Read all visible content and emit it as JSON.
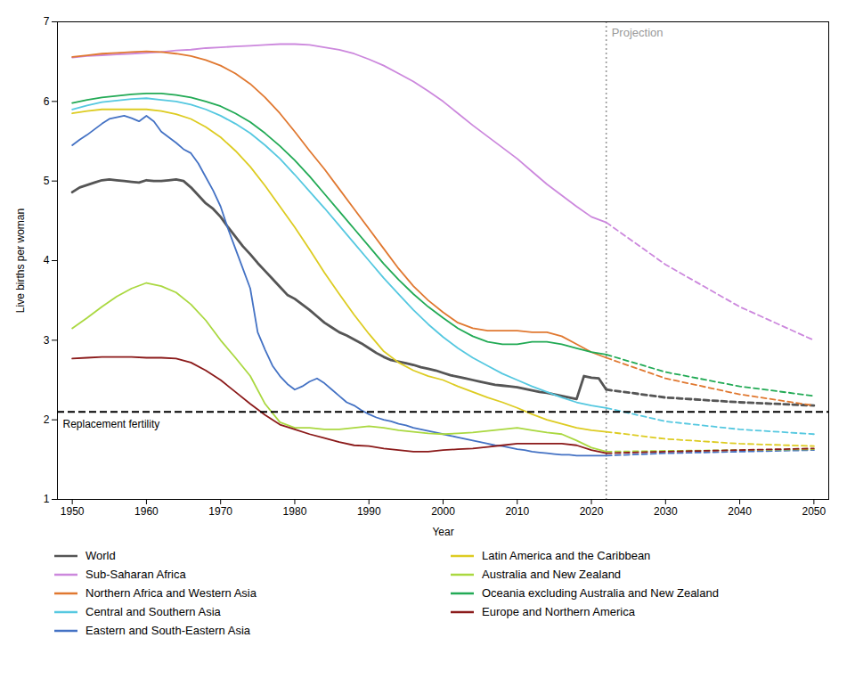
{
  "chart_data": {
    "type": "line",
    "xlabel": "Year",
    "ylabel": "Live births per woman",
    "xlim": [
      1948,
      2052
    ],
    "ylim": [
      1,
      7
    ],
    "xticks": [
      1950,
      1960,
      1970,
      1980,
      1990,
      2000,
      2010,
      2020,
      2030,
      2040,
      2050
    ],
    "yticks": [
      1,
      2,
      3,
      4,
      5,
      6,
      7
    ],
    "grid": false,
    "legend": "bottom",
    "annotations": [
      {
        "type": "hline",
        "y": 2.1,
        "text": "Replacement fertility",
        "color": "black",
        "line_style": "dashed"
      },
      {
        "type": "vline",
        "x": 2022,
        "text": "Projection",
        "color": "#999999",
        "line_style": "dotted"
      }
    ],
    "series": [
      {
        "name": "World",
        "color": "#555555",
        "line_style": "solid",
        "x": [
          1950,
          1951,
          1952,
          1953,
          1954,
          1955,
          1956,
          1957,
          1958,
          1959,
          1960,
          1961,
          1962,
          1963,
          1964,
          1965,
          1966,
          1967,
          1968,
          1969,
          1970,
          1971,
          1972,
          1973,
          1974,
          1975,
          1976,
          1977,
          1978,
          1979,
          1980,
          1981,
          1982,
          1983,
          1984,
          1985,
          1986,
          1987,
          1988,
          1989,
          1990,
          1991,
          1992,
          1993,
          1994,
          1995,
          1996,
          1997,
          1998,
          1999,
          2000,
          2001,
          2002,
          2003,
          2004,
          2005,
          2006,
          2007,
          2008,
          2009,
          2010,
          2011,
          2012,
          2013,
          2014,
          2015,
          2016,
          2017,
          2018,
          2019,
          2020,
          2021,
          2022
        ],
        "values": [
          4.86,
          4.92,
          4.95,
          4.98,
          5.01,
          5.02,
          5.01,
          5.0,
          4.99,
          4.98,
          5.01,
          5.0,
          5.0,
          5.01,
          5.02,
          5.0,
          4.92,
          4.82,
          4.72,
          4.65,
          4.55,
          4.42,
          4.3,
          4.18,
          4.08,
          3.97,
          3.87,
          3.77,
          3.67,
          3.57,
          3.52,
          3.45,
          3.38,
          3.3,
          3.22,
          3.16,
          3.1,
          3.06,
          3.01,
          2.96,
          2.9,
          2.84,
          2.79,
          2.75,
          2.73,
          2.71,
          2.69,
          2.66,
          2.64,
          2.62,
          2.59,
          2.56,
          2.54,
          2.52,
          2.5,
          2.48,
          2.46,
          2.44,
          2.43,
          2.42,
          2.41,
          2.39,
          2.37,
          2.35,
          2.34,
          2.32,
          2.3,
          2.28,
          2.26,
          2.55,
          2.53,
          2.52,
          2.38
        ],
        "projection": {
          "x": [
            2022,
            2030,
            2040,
            2050
          ],
          "values": [
            2.38,
            2.28,
            2.22,
            2.18
          ],
          "line_style": "dashed"
        }
      },
      {
        "name": "Sub-Saharan Africa",
        "color": "#cc88dd",
        "line_style": "solid",
        "x": [
          1950,
          1952,
          1954,
          1956,
          1958,
          1960,
          1962,
          1964,
          1966,
          1968,
          1970,
          1972,
          1974,
          1976,
          1978,
          1980,
          1982,
          1984,
          1986,
          1988,
          1990,
          1992,
          1994,
          1996,
          1998,
          2000,
          2002,
          2004,
          2006,
          2008,
          2010,
          2012,
          2014,
          2016,
          2018,
          2020,
          2022
        ],
        "values": [
          6.55,
          6.57,
          6.58,
          6.59,
          6.6,
          6.61,
          6.62,
          6.64,
          6.65,
          6.67,
          6.68,
          6.69,
          6.7,
          6.71,
          6.72,
          6.72,
          6.71,
          6.68,
          6.65,
          6.6,
          6.53,
          6.45,
          6.35,
          6.25,
          6.13,
          6.0,
          5.85,
          5.7,
          5.56,
          5.42,
          5.28,
          5.12,
          4.96,
          4.82,
          4.68,
          4.55,
          4.48
        ],
        "projection": {
          "x": [
            2022,
            2030,
            2040,
            2050
          ],
          "values": [
            4.48,
            3.95,
            3.42,
            3.0
          ],
          "line_style": "dashed"
        }
      },
      {
        "name": "Northern Africa and Western Asia",
        "color": "#e07830",
        "line_style": "solid",
        "x": [
          1950,
          1952,
          1954,
          1956,
          1958,
          1960,
          1962,
          1964,
          1966,
          1968,
          1970,
          1972,
          1974,
          1976,
          1978,
          1980,
          1982,
          1984,
          1986,
          1988,
          1990,
          1992,
          1994,
          1996,
          1998,
          2000,
          2002,
          2004,
          2006,
          2008,
          2010,
          2012,
          2014,
          2016,
          2018,
          2020,
          2022
        ],
        "values": [
          6.56,
          6.58,
          6.6,
          6.61,
          6.62,
          6.63,
          6.62,
          6.6,
          6.57,
          6.52,
          6.45,
          6.35,
          6.22,
          6.05,
          5.85,
          5.62,
          5.38,
          5.15,
          4.9,
          4.65,
          4.4,
          4.15,
          3.9,
          3.68,
          3.5,
          3.35,
          3.22,
          3.15,
          3.12,
          3.12,
          3.12,
          3.1,
          3.1,
          3.05,
          2.95,
          2.85,
          2.78
        ],
        "projection": {
          "x": [
            2022,
            2030,
            2040,
            2050
          ],
          "values": [
            2.78,
            2.52,
            2.32,
            2.18
          ],
          "line_style": "dashed"
        }
      },
      {
        "name": "Central and Southern Asia",
        "color": "#55c8e0",
        "line_style": "solid",
        "x": [
          1950,
          1952,
          1954,
          1956,
          1958,
          1960,
          1962,
          1964,
          1966,
          1968,
          1970,
          1972,
          1974,
          1976,
          1978,
          1980,
          1982,
          1984,
          1986,
          1988,
          1990,
          1992,
          1994,
          1996,
          1998,
          2000,
          2002,
          2004,
          2006,
          2008,
          2010,
          2012,
          2014,
          2016,
          2018,
          2020,
          2022
        ],
        "values": [
          5.9,
          5.95,
          5.99,
          6.01,
          6.03,
          6.04,
          6.02,
          6.0,
          5.96,
          5.9,
          5.82,
          5.72,
          5.6,
          5.45,
          5.28,
          5.08,
          4.87,
          4.66,
          4.44,
          4.22,
          4.0,
          3.78,
          3.58,
          3.38,
          3.2,
          3.04,
          2.9,
          2.78,
          2.68,
          2.58,
          2.5,
          2.42,
          2.35,
          2.28,
          2.22,
          2.18,
          2.15
        ],
        "projection": {
          "x": [
            2022,
            2030,
            2040,
            2050
          ],
          "values": [
            2.15,
            1.98,
            1.88,
            1.82
          ],
          "line_style": "dashed"
        }
      },
      {
        "name": "Eastern and South-Eastern Asia",
        "color": "#4472c4",
        "line_style": "solid",
        "x": [
          1950,
          1951,
          1952,
          1953,
          1954,
          1955,
          1956,
          1957,
          1958,
          1959,
          1960,
          1961,
          1962,
          1963,
          1964,
          1965,
          1966,
          1967,
          1968,
          1969,
          1970,
          1971,
          1972,
          1973,
          1974,
          1975,
          1976,
          1977,
          1978,
          1979,
          1980,
          1981,
          1982,
          1983,
          1984,
          1985,
          1986,
          1987,
          1988,
          1989,
          1990,
          1991,
          1992,
          1993,
          1994,
          1995,
          1996,
          1997,
          1998,
          1999,
          2000,
          2001,
          2002,
          2003,
          2004,
          2005,
          2006,
          2007,
          2008,
          2009,
          2010,
          2011,
          2012,
          2013,
          2014,
          2015,
          2016,
          2017,
          2018,
          2019,
          2020,
          2021,
          2022
        ],
        "values": [
          5.45,
          5.52,
          5.58,
          5.65,
          5.72,
          5.78,
          5.8,
          5.82,
          5.79,
          5.75,
          5.82,
          5.75,
          5.62,
          5.55,
          5.48,
          5.4,
          5.35,
          5.22,
          5.05,
          4.88,
          4.68,
          4.4,
          4.15,
          3.9,
          3.65,
          3.1,
          2.88,
          2.68,
          2.55,
          2.45,
          2.38,
          2.42,
          2.48,
          2.52,
          2.46,
          2.38,
          2.3,
          2.22,
          2.18,
          2.12,
          2.07,
          2.03,
          2.0,
          1.98,
          1.95,
          1.93,
          1.9,
          1.88,
          1.86,
          1.84,
          1.82,
          1.8,
          1.78,
          1.76,
          1.74,
          1.72,
          1.7,
          1.68,
          1.67,
          1.65,
          1.63,
          1.62,
          1.6,
          1.59,
          1.58,
          1.57,
          1.56,
          1.56,
          1.55,
          1.55,
          1.55,
          1.55,
          1.55
        ],
        "projection": {
          "x": [
            2022,
            2030,
            2040,
            2050
          ],
          "values": [
            1.55,
            1.58,
            1.6,
            1.62
          ],
          "line_style": "dashed"
        }
      },
      {
        "name": "Latin America and the Caribbean",
        "color": "#ddcc22",
        "line_style": "solid",
        "x": [
          1950,
          1952,
          1954,
          1956,
          1958,
          1960,
          1962,
          1964,
          1966,
          1968,
          1970,
          1972,
          1974,
          1976,
          1978,
          1980,
          1982,
          1984,
          1986,
          1988,
          1990,
          1992,
          1994,
          1996,
          1998,
          2000,
          2002,
          2004,
          2006,
          2008,
          2010,
          2012,
          2014,
          2016,
          2018,
          2020,
          2022
        ],
        "values": [
          5.85,
          5.88,
          5.9,
          5.9,
          5.9,
          5.9,
          5.88,
          5.84,
          5.78,
          5.68,
          5.55,
          5.38,
          5.18,
          4.94,
          4.68,
          4.42,
          4.14,
          3.85,
          3.58,
          3.32,
          3.08,
          2.86,
          2.72,
          2.62,
          2.55,
          2.5,
          2.42,
          2.35,
          2.28,
          2.22,
          2.15,
          2.07,
          2.0,
          1.95,
          1.9,
          1.87,
          1.85
        ],
        "projection": {
          "x": [
            2022,
            2030,
            2040,
            2050
          ],
          "values": [
            1.85,
            1.76,
            1.7,
            1.67
          ],
          "line_style": "dashed"
        }
      },
      {
        "name": "Australia and New Zealand",
        "color": "#aad840",
        "line_style": "solid",
        "x": [
          1950,
          1952,
          1954,
          1956,
          1958,
          1960,
          1962,
          1964,
          1966,
          1968,
          1970,
          1972,
          1974,
          1976,
          1978,
          1980,
          1982,
          1984,
          1986,
          1988,
          1990,
          1992,
          1994,
          1996,
          1998,
          2000,
          2002,
          2004,
          2006,
          2008,
          2010,
          2012,
          2014,
          2016,
          2018,
          2020,
          2022
        ],
        "values": [
          3.15,
          3.28,
          3.42,
          3.55,
          3.65,
          3.72,
          3.68,
          3.6,
          3.45,
          3.25,
          3.0,
          2.78,
          2.55,
          2.2,
          1.97,
          1.9,
          1.9,
          1.88,
          1.88,
          1.9,
          1.92,
          1.9,
          1.87,
          1.85,
          1.83,
          1.82,
          1.83,
          1.84,
          1.86,
          1.88,
          1.9,
          1.87,
          1.84,
          1.82,
          1.74,
          1.65,
          1.6
        ],
        "projection": {
          "x": [
            2022,
            2030,
            2040,
            2050
          ],
          "values": [
            1.6,
            1.61,
            1.62,
            1.63
          ],
          "line_style": "dashed"
        }
      },
      {
        "name": "Oceania excluding Australia and New Zealand",
        "color": "#22aa55",
        "line_style": "solid",
        "x": [
          1950,
          1952,
          1954,
          1956,
          1958,
          1960,
          1962,
          1964,
          1966,
          1968,
          1970,
          1972,
          1974,
          1976,
          1978,
          1980,
          1982,
          1984,
          1986,
          1988,
          1990,
          1992,
          1994,
          1996,
          1998,
          2000,
          2002,
          2004,
          2006,
          2008,
          2010,
          2012,
          2014,
          2016,
          2018,
          2020,
          2022
        ],
        "values": [
          5.98,
          6.02,
          6.05,
          6.07,
          6.09,
          6.1,
          6.1,
          6.08,
          6.05,
          6.0,
          5.94,
          5.85,
          5.74,
          5.6,
          5.44,
          5.26,
          5.06,
          4.84,
          4.62,
          4.4,
          4.18,
          3.96,
          3.76,
          3.58,
          3.42,
          3.28,
          3.15,
          3.05,
          2.98,
          2.95,
          2.95,
          2.98,
          2.98,
          2.95,
          2.9,
          2.85,
          2.82
        ],
        "projection": {
          "x": [
            2022,
            2030,
            2040,
            2050
          ],
          "values": [
            2.82,
            2.6,
            2.42,
            2.3
          ],
          "line_style": "dashed"
        }
      },
      {
        "name": "Europe and Northern America",
        "color": "#8b1a1a",
        "line_style": "solid",
        "x": [
          1950,
          1952,
          1954,
          1956,
          1958,
          1960,
          1962,
          1964,
          1966,
          1968,
          1970,
          1972,
          1974,
          1976,
          1978,
          1980,
          1982,
          1984,
          1986,
          1988,
          1990,
          1992,
          1994,
          1996,
          1998,
          2000,
          2002,
          2004,
          2006,
          2008,
          2010,
          2012,
          2014,
          2016,
          2018,
          2020,
          2022
        ],
        "values": [
          2.77,
          2.78,
          2.79,
          2.79,
          2.79,
          2.78,
          2.78,
          2.77,
          2.72,
          2.62,
          2.5,
          2.35,
          2.2,
          2.06,
          1.94,
          1.88,
          1.82,
          1.77,
          1.72,
          1.68,
          1.67,
          1.64,
          1.62,
          1.6,
          1.6,
          1.62,
          1.63,
          1.64,
          1.66,
          1.68,
          1.7,
          1.7,
          1.7,
          1.7,
          1.68,
          1.62,
          1.58
        ],
        "projection": {
          "x": [
            2022,
            2030,
            2040,
            2050
          ],
          "values": [
            1.58,
            1.6,
            1.62,
            1.64
          ],
          "line_style": "dashed"
        }
      }
    ]
  }
}
